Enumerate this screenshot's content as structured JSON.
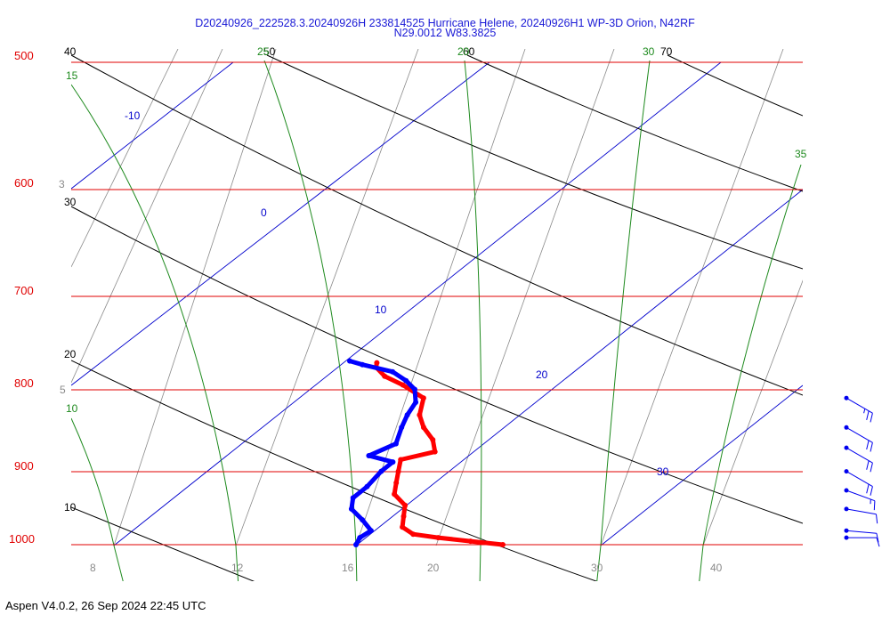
{
  "title": {
    "line1": "D20240926_222528.3.20240926H 233814525 Hurricane Helene, 20240926H1 WP-3D Orion, N42RF",
    "line2": "N29.0012 W83.3825"
  },
  "footer": "Aspen V4.0.2, 26 Sep 2024  22:45 UTC",
  "colors": {
    "isobar": "#e00000",
    "isotherm": "#0000cc",
    "dry_adiabat": "#000000",
    "moist_adiabat": "#1e8a1e",
    "mixing_ratio": "#8a8a8a",
    "temperature": "#ff0000",
    "dewpoint": "#0000ff",
    "wind": "#0000ee"
  },
  "chart_data": {
    "type": "skew-t",
    "pressure_levels": [
      "500",
      "600",
      "700",
      "800",
      "900",
      "1000"
    ],
    "ylim": [
      1020,
      500
    ],
    "isotherm_labels": [
      "-10",
      "0",
      "10",
      "20",
      "30"
    ],
    "dry_adiabat_labels": [
      "40",
      "50",
      "60",
      "70",
      "30",
      "20",
      "10"
    ],
    "moist_adiabat_labels": [
      "15",
      "20",
      "25",
      "30",
      "35",
      "10"
    ],
    "mixing_ratio_labels": [
      "3",
      "5",
      "8",
      "12",
      "16",
      "20",
      "30",
      "40"
    ],
    "temperature_profile": [
      {
        "p": 1000,
        "t": 26.0
      },
      {
        "p": 995,
        "t": 24.5
      },
      {
        "p": 990,
        "t": 23.0
      },
      {
        "p": 985,
        "t": 21.8
      },
      {
        "p": 975,
        "t": 21.0
      },
      {
        "p": 960,
        "t": 20.5
      },
      {
        "p": 945,
        "t": 20.0
      },
      {
        "p": 930,
        "t": 19.0
      },
      {
        "p": 915,
        "t": 18.5
      },
      {
        "p": 900,
        "t": 18.0
      },
      {
        "p": 885,
        "t": 17.5
      },
      {
        "p": 875,
        "t": 18.5
      },
      {
        "p": 860,
        "t": 17.8
      },
      {
        "p": 845,
        "t": 16.8
      },
      {
        "p": 830,
        "t": 16.0
      },
      {
        "p": 810,
        "t": 15.3
      },
      {
        "p": 795,
        "t": 13.8
      },
      {
        "p": 785,
        "t": 12.6
      },
      {
        "p": 775,
        "t": 11.8
      },
      {
        "p": 770,
        "t": 11.6
      }
    ],
    "dewpoint_profile": [
      {
        "p": 1000,
        "td": 20.0
      },
      {
        "p": 990,
        "td": 19.8
      },
      {
        "p": 980,
        "td": 19.9
      },
      {
        "p": 965,
        "td": 19.0
      },
      {
        "p": 950,
        "td": 18.0
      },
      {
        "p": 935,
        "td": 17.5
      },
      {
        "p": 920,
        "td": 17.5
      },
      {
        "p": 900,
        "td": 17.3
      },
      {
        "p": 888,
        "td": 17.3
      },
      {
        "p": 880,
        "td": 16.0
      },
      {
        "p": 865,
        "td": 16.5
      },
      {
        "p": 845,
        "td": 15.9
      },
      {
        "p": 830,
        "td": 15.5
      },
      {
        "p": 815,
        "td": 15.2
      },
      {
        "p": 800,
        "td": 14.5
      },
      {
        "p": 790,
        "td": 13.7
      },
      {
        "p": 780,
        "td": 12.7
      },
      {
        "p": 772,
        "td": 11.1
      },
      {
        "p": 768,
        "td": 10.4
      }
    ],
    "wind_barbs": [
      {
        "p": 810,
        "dir": 120,
        "speed_kt": 25
      },
      {
        "p": 845,
        "dir": 120,
        "speed_kt": 20
      },
      {
        "p": 870,
        "dir": 120,
        "speed_kt": 20
      },
      {
        "p": 900,
        "dir": 120,
        "speed_kt": 20
      },
      {
        "p": 925,
        "dir": 110,
        "speed_kt": 15
      },
      {
        "p": 950,
        "dir": 100,
        "speed_kt": 10
      },
      {
        "p": 980,
        "dir": 95,
        "speed_kt": 10
      },
      {
        "p": 990,
        "dir": 90,
        "speed_kt": 10
      }
    ]
  }
}
